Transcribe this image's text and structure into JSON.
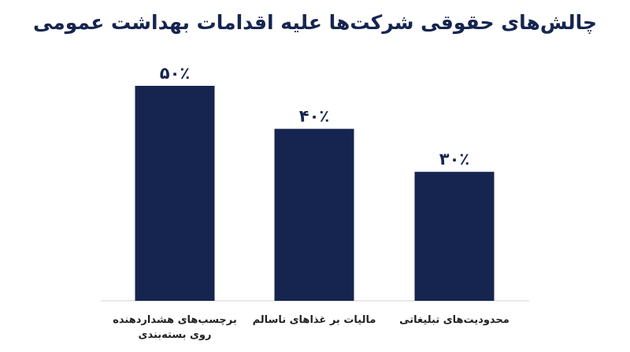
{
  "chart_data": {
    "type": "bar",
    "title": "چالش‌های حقوقی شرکت‌ها علیه اقدامات بهداشت عمومی",
    "categories": [
      "برچسب‌های هشداردهنده روی بسته‌بندی",
      "مالیات بر غذاهای ناسالم",
      "محدودیت‌های تبلیغاتی"
    ],
    "category_label_lines": [
      [
        "برچسب‌های هشداردهنده",
        "روی بسته‌بندی"
      ],
      [
        "مالیات بر غذاهای ناسالم"
      ],
      [
        "محدودیت‌های تبلیغاتی"
      ]
    ],
    "values": [
      50,
      40,
      30
    ],
    "value_labels": [
      "۵۰٪",
      "۴۰٪",
      "۳۰٪"
    ],
    "xlabel": "",
    "ylabel": "",
    "ylim": [
      0,
      50
    ],
    "grid": false,
    "legend": "none",
    "bar_color": "#16254f"
  }
}
